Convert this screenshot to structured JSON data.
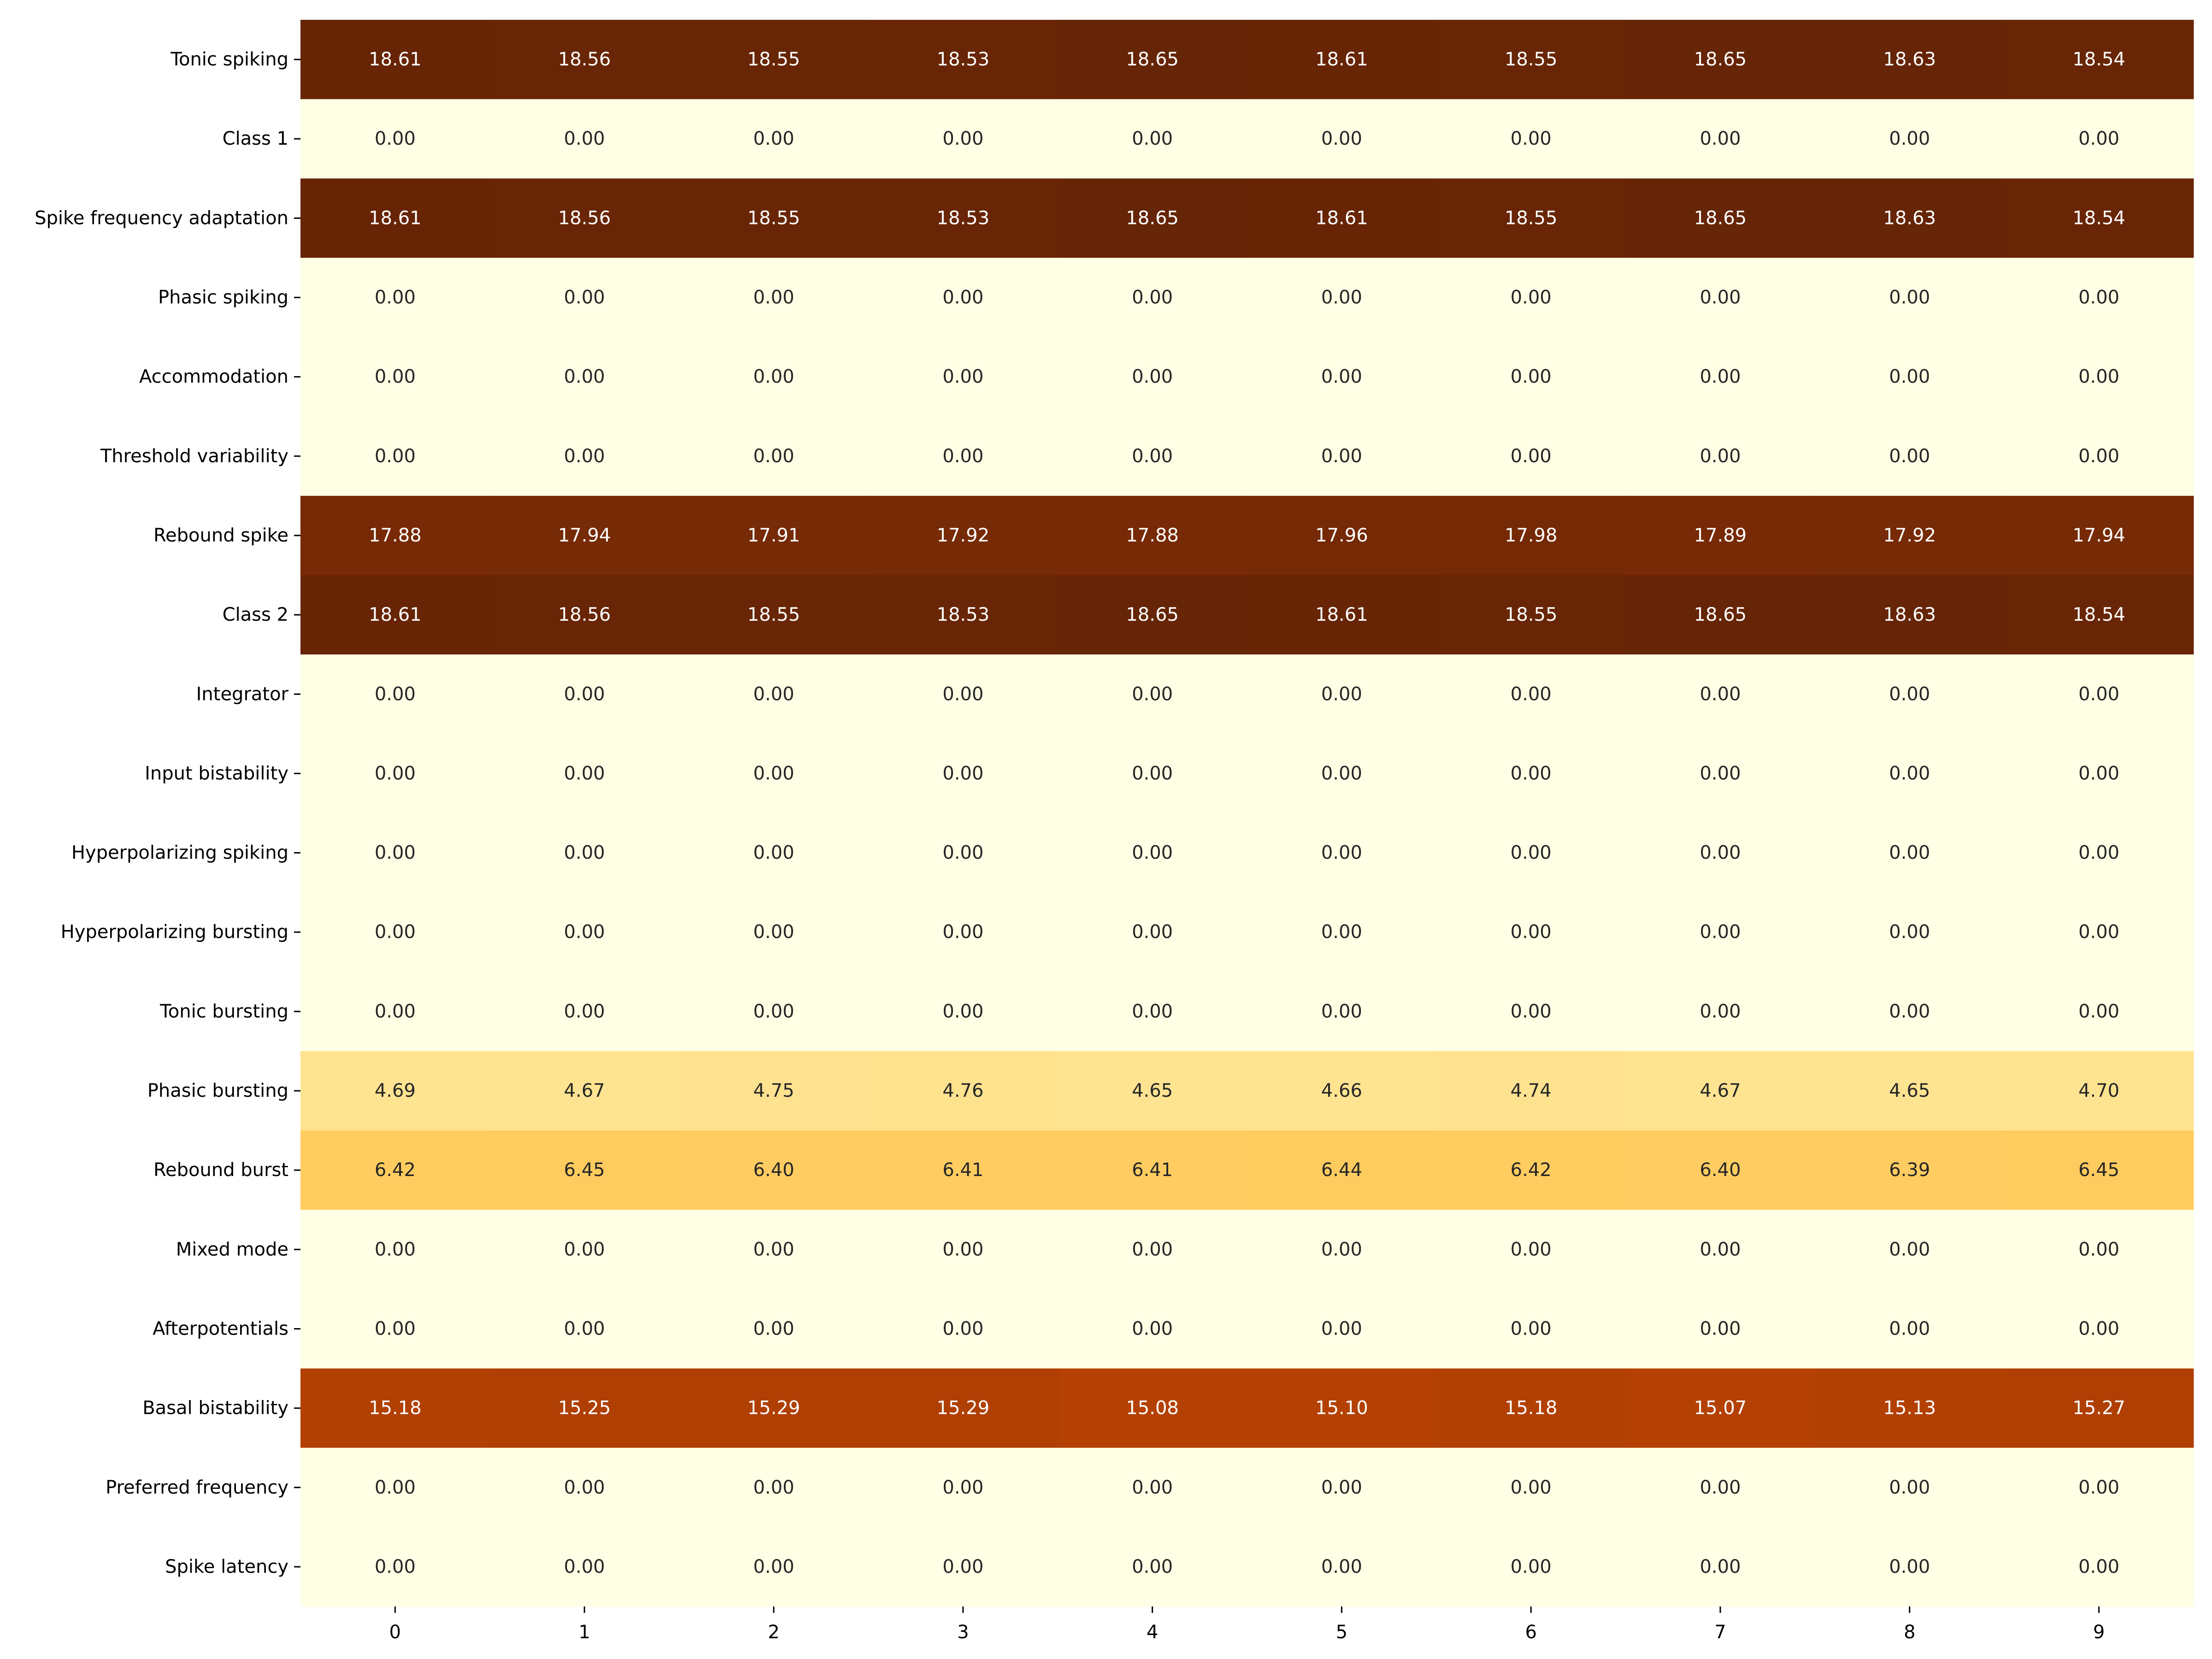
{
  "chart_data": {
    "type": "heatmap",
    "title": "",
    "xlabel": "",
    "ylabel": "",
    "colormap": "YlOrBr",
    "value_range": [
      0,
      18.65
    ],
    "legend": "none",
    "grid": false,
    "x_categories": [
      "0",
      "1",
      "2",
      "3",
      "4",
      "5",
      "6",
      "7",
      "8",
      "9"
    ],
    "y_categories": [
      "Tonic spiking",
      "Class 1",
      "Spike frequency adaptation",
      "Phasic spiking",
      "Accommodation",
      "Threshold variability",
      "Rebound spike",
      "Class 2",
      "Integrator",
      "Input bistability",
      "Hyperpolarizing spiking",
      "Hyperpolarizing bursting",
      "Tonic bursting",
      "Phasic bursting",
      "Rebound burst",
      "Mixed mode",
      "Afterpotentials",
      "Basal bistability",
      "Preferred frequency",
      "Spike latency"
    ],
    "values": [
      [
        18.61,
        18.56,
        18.55,
        18.53,
        18.65,
        18.61,
        18.55,
        18.65,
        18.63,
        18.54
      ],
      [
        0.0,
        0.0,
        0.0,
        0.0,
        0.0,
        0.0,
        0.0,
        0.0,
        0.0,
        0.0
      ],
      [
        18.61,
        18.56,
        18.55,
        18.53,
        18.65,
        18.61,
        18.55,
        18.65,
        18.63,
        18.54
      ],
      [
        0.0,
        0.0,
        0.0,
        0.0,
        0.0,
        0.0,
        0.0,
        0.0,
        0.0,
        0.0
      ],
      [
        0.0,
        0.0,
        0.0,
        0.0,
        0.0,
        0.0,
        0.0,
        0.0,
        0.0,
        0.0
      ],
      [
        0.0,
        0.0,
        0.0,
        0.0,
        0.0,
        0.0,
        0.0,
        0.0,
        0.0,
        0.0
      ],
      [
        17.88,
        17.94,
        17.91,
        17.92,
        17.88,
        17.96,
        17.98,
        17.89,
        17.92,
        17.94
      ],
      [
        18.61,
        18.56,
        18.55,
        18.53,
        18.65,
        18.61,
        18.55,
        18.65,
        18.63,
        18.54
      ],
      [
        0.0,
        0.0,
        0.0,
        0.0,
        0.0,
        0.0,
        0.0,
        0.0,
        0.0,
        0.0
      ],
      [
        0.0,
        0.0,
        0.0,
        0.0,
        0.0,
        0.0,
        0.0,
        0.0,
        0.0,
        0.0
      ],
      [
        0.0,
        0.0,
        0.0,
        0.0,
        0.0,
        0.0,
        0.0,
        0.0,
        0.0,
        0.0
      ],
      [
        0.0,
        0.0,
        0.0,
        0.0,
        0.0,
        0.0,
        0.0,
        0.0,
        0.0,
        0.0
      ],
      [
        0.0,
        0.0,
        0.0,
        0.0,
        0.0,
        0.0,
        0.0,
        0.0,
        0.0,
        0.0
      ],
      [
        4.69,
        4.67,
        4.75,
        4.76,
        4.65,
        4.66,
        4.74,
        4.67,
        4.65,
        4.7
      ],
      [
        6.42,
        6.45,
        6.4,
        6.41,
        6.41,
        6.44,
        6.42,
        6.4,
        6.39,
        6.45
      ],
      [
        0.0,
        0.0,
        0.0,
        0.0,
        0.0,
        0.0,
        0.0,
        0.0,
        0.0,
        0.0
      ],
      [
        0.0,
        0.0,
        0.0,
        0.0,
        0.0,
        0.0,
        0.0,
        0.0,
        0.0,
        0.0
      ],
      [
        15.18,
        15.25,
        15.29,
        15.29,
        15.08,
        15.1,
        15.18,
        15.07,
        15.13,
        15.27
      ],
      [
        0.0,
        0.0,
        0.0,
        0.0,
        0.0,
        0.0,
        0.0,
        0.0,
        0.0,
        0.0
      ],
      [
        0.0,
        0.0,
        0.0,
        0.0,
        0.0,
        0.0,
        0.0,
        0.0,
        0.0,
        0.0
      ]
    ]
  }
}
